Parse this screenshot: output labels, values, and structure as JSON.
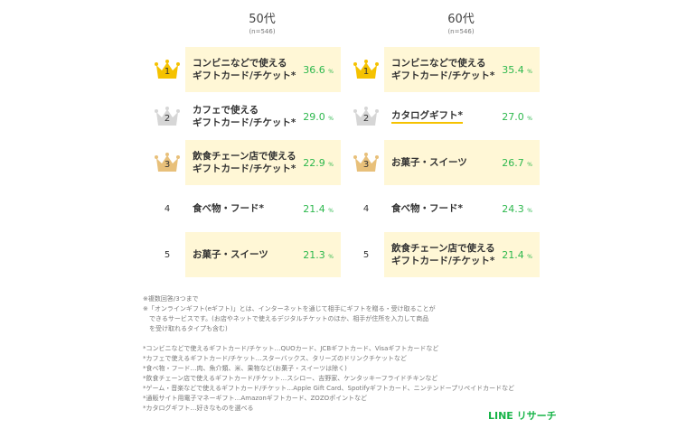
{
  "columns": [
    {
      "title": "50代",
      "n": "(n=546)",
      "rows": [
        {
          "rank": "1",
          "label": "コンビニなどで使える\nギフトカード/チケット*",
          "pct": "36.6",
          "highlight": true,
          "crown": "gold"
        },
        {
          "rank": "2",
          "label": "カフェで使える\nギフトカード/チケット*",
          "pct": "29.0",
          "highlight": false,
          "crown": "silver"
        },
        {
          "rank": "3",
          "label": "飲食チェーン店で使える\nギフトカード/チケット*",
          "pct": "22.9",
          "highlight": true,
          "crown": "bronze"
        },
        {
          "rank": "4",
          "label": "食べ物・フード*",
          "pct": "21.4",
          "highlight": false
        },
        {
          "rank": "5",
          "label": "お菓子・スイーツ",
          "pct": "21.3",
          "highlight": true
        }
      ]
    },
    {
      "title": "60代",
      "n": "(n=546)",
      "rows": [
        {
          "rank": "1",
          "label": "コンビニなどで使える\nギフトカード/チケット*",
          "pct": "35.4",
          "highlight": true,
          "crown": "gold"
        },
        {
          "rank": "2",
          "label": "カタログギフト*",
          "pct": "27.0",
          "highlight": false,
          "crown": "silver",
          "underline": true
        },
        {
          "rank": "3",
          "label": "お菓子・スイーツ",
          "pct": "26.7",
          "highlight": true,
          "crown": "bronze"
        },
        {
          "rank": "4",
          "label": "食べ物・フード*",
          "pct": "24.3",
          "highlight": false
        },
        {
          "rank": "5",
          "label": "飲食チェーン店で使える\nギフトカード/チケット*",
          "pct": "21.4",
          "highlight": true
        }
      ]
    }
  ],
  "percent_unit": "%",
  "notes": [
    "※複数回答/3つまで",
    "※「オンラインギフト(eギフト)」とは、インターネットを通じて相手にギフトを贈る・受け取ることが",
    "　できるサービスです。(お店やネットで使えるデジタルチケットのほか、相手が住所を入力して商品",
    "　を受け取れるタイプも含む)",
    "",
    "*コンビニなどで使えるギフトカード/チケット…QUOカード、JCBギフトカード、Visaギフトカードなど",
    "*カフェで使えるギフトカード/チケット…スターバックス、タリーズのドリンクチケットなど",
    "*食べ物・フード…肉、魚介類、米、果物など(お菓子・スイーツは除く)",
    "*飲食チェーン店で使えるギフトカード/チケット…スシロー、吉野家、ケンタッキーフライドチキンなど",
    "*ゲーム・音楽などで使えるギフトカード/チケット…Apple Gift Card、Spotifyギフトカード、ニンテンドープリペイドカードなど",
    "*通販サイト用電子マネーギフト…Amazonギフトカード、ZOZOポイントなど",
    "*カタログギフト…好きなものを選べる"
  ],
  "logo": "LINE リサーチ",
  "colors": {
    "gold": "#f5c200",
    "silver": "#d6d6d6",
    "bronze": "#e8c07a",
    "highlight": "#fff7d6",
    "pct": "#2db84d"
  }
}
